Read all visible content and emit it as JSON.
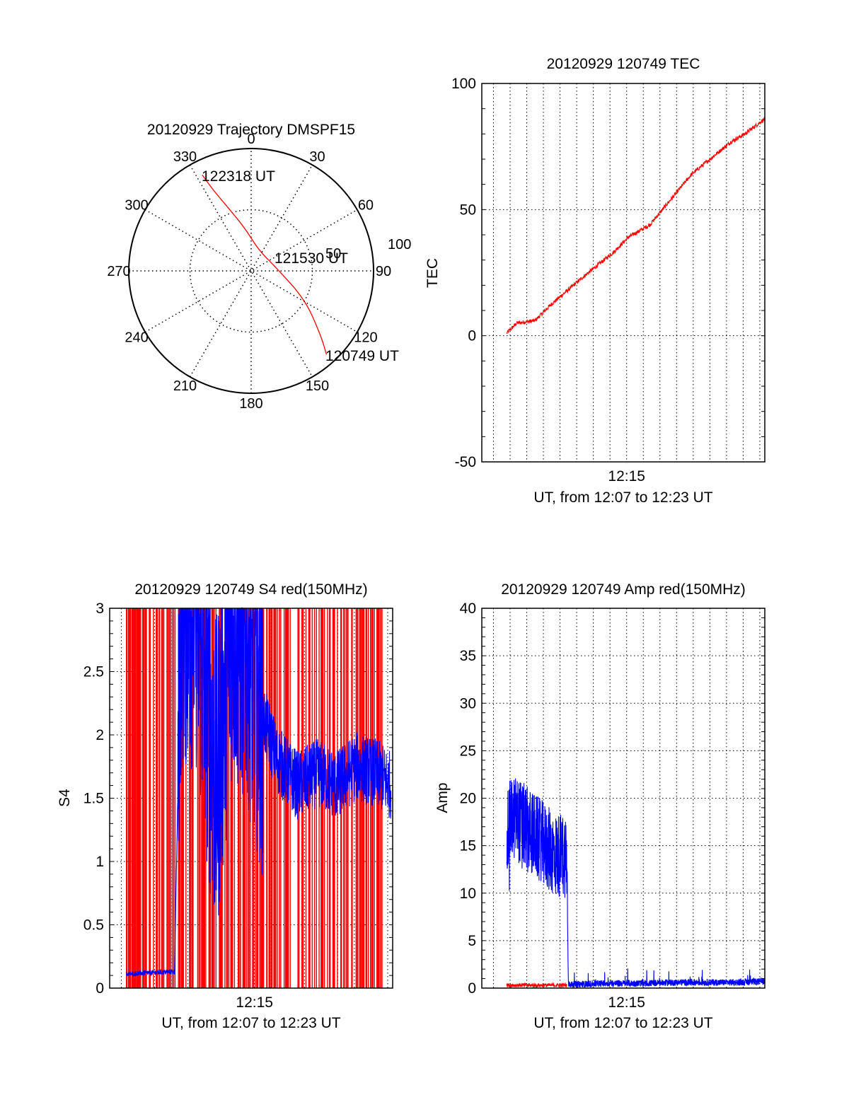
{
  "chart_data": [
    {
      "type": "polar",
      "title": "20120929 Trajectory DMSPF15",
      "angle_ticks": [
        "0",
        "30",
        "60",
        "90",
        "120",
        "150",
        "180",
        "210",
        "240",
        "270",
        "300",
        "330"
      ],
      "radius_ticks": [
        "50",
        "100"
      ],
      "rlim": [
        0,
        100
      ],
      "grid": true,
      "series": [
        {
          "color": "#ff0000",
          "points": [
            {
              "azimuth": 333,
              "radius": 88
            },
            {
              "azimuth": 335,
              "radius": 72
            },
            {
              "azimuth": 340,
              "radius": 55
            },
            {
              "azimuth": 352,
              "radius": 35
            },
            {
              "azimuth": 20,
              "radius": 18
            },
            {
              "azimuth": 80,
              "radius": 20
            },
            {
              "azimuth": 118,
              "radius": 50
            },
            {
              "azimuth": 133,
              "radius": 78
            },
            {
              "azimuth": 138,
              "radius": 92
            }
          ]
        }
      ],
      "annotations": [
        {
          "text": "122318 UT",
          "azimuth": 333,
          "radius": 88
        },
        {
          "text": "121530 UT",
          "azimuth": 80,
          "radius": 20
        },
        {
          "text": "120749 UT",
          "azimuth": 138,
          "radius": 92
        }
      ]
    },
    {
      "type": "line",
      "title": "20120929 120749 TEC",
      "xlabel": "UT, from 12:07 to 12:23 UT",
      "ylabel": "TEC",
      "xlim": [
        "12:06.3",
        "12:23.3"
      ],
      "ylim": [
        -50,
        100
      ],
      "yticks": [
        "-50",
        "0",
        "50",
        "100"
      ],
      "xticks": [
        "12:15"
      ],
      "grid": true,
      "series": [
        {
          "color": "#ff0000",
          "x": [
            "12:07.8",
            "12:08.4",
            "12:09.5",
            "12:10.4",
            "12:11.8",
            "12:12.7",
            "12:14.2",
            "12:15.1",
            "12:16.4",
            "12:17.4",
            "12:18.9",
            "12:20.0",
            "12:21.3",
            "12:22.1",
            "12:23.3"
          ],
          "values": [
            1,
            5,
            6,
            12,
            20,
            25,
            33,
            39,
            44,
            52,
            64,
            70,
            77,
            80,
            86
          ]
        }
      ]
    },
    {
      "type": "line",
      "title": "20120929 120749 S4 red(150MHz)",
      "xlabel": "UT, from 12:07 to 12:23 UT",
      "ylabel": "S4",
      "xlim": [
        "12:06.3",
        "12:23.3"
      ],
      "ylim": [
        0,
        3
      ],
      "yticks": [
        "0",
        "0.5",
        "1",
        "1.5",
        "2",
        "2.5",
        "3"
      ],
      "xticks": [
        "12:15"
      ],
      "grid": true,
      "series": [
        {
          "color": "#ff0000",
          "style": "spikes",
          "x_range": [
            "12:07.3",
            "12:23.2"
          ],
          "values": [
            0,
            3
          ]
        },
        {
          "color": "#0000ff",
          "x": [
            "12:07.3",
            "12:08.5",
            "12:10.2",
            "12:10.6",
            "12:11.5",
            "12:12.7",
            "12:13.6",
            "12:14.6",
            "12:15.6",
            "12:16.4",
            "12:17.6",
            "12:18.8",
            "12:19.9",
            "12:21.1",
            "12:22.3",
            "12:23.2"
          ],
          "values": [
            0.11,
            0.12,
            0.13,
            3.0,
            3.0,
            1.6,
            2.9,
            2.7,
            2.1,
            1.8,
            1.6,
            1.7,
            1.6,
            1.75,
            1.7,
            1.6
          ]
        }
      ]
    },
    {
      "type": "line",
      "title": "20120929 120749 Amp red(150MHz)",
      "xlabel": "UT, from 12:07 to 12:23 UT",
      "ylabel": "Amp",
      "xlim": [
        "12:06.3",
        "12:23.3"
      ],
      "ylim": [
        0,
        40
      ],
      "yticks": [
        "0",
        "5",
        "10",
        "15",
        "20",
        "25",
        "30",
        "35",
        "40"
      ],
      "xticks": [
        "12:15"
      ],
      "grid": true,
      "series": [
        {
          "color": "#ff0000",
          "x": [
            "12:07.8",
            "12:11.4"
          ],
          "values": [
            0.3,
            0.3
          ]
        },
        {
          "color": "#0000ff",
          "x": [
            "12:07.8",
            "12:08.3",
            "12:08.9",
            "12:09.5",
            "12:10.1",
            "12:10.7",
            "12:11.4",
            "12:11.5",
            "12:12.0",
            "12:13.8",
            "12:16.1",
            "12:18.0",
            "12:19.8",
            "12:21.6",
            "12:23.3"
          ],
          "values": [
            17,
            18,
            17,
            16,
            15,
            14,
            14,
            0.4,
            0.4,
            0.5,
            0.5,
            0.6,
            0.6,
            0.6,
            0.7
          ]
        }
      ]
    }
  ]
}
